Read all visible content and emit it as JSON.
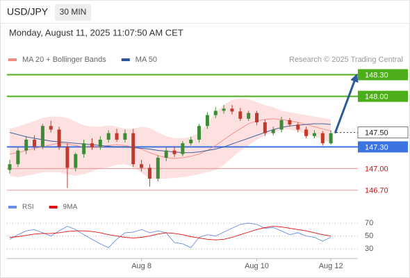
{
  "header": {
    "symbol": "USD/JPY",
    "interval": "30 MIN",
    "timestamp": "Monday, August 11, 2025 11:07:50 AM CET"
  },
  "chart_data": [
    {
      "type": "candlestick",
      "credit": "Research © 2025 Trading Central",
      "up_color": "#3d8b37",
      "down_color": "#c0392b",
      "ylim": [
        146.62,
        148.42
      ],
      "categories": [
        null,
        null,
        null,
        null,
        null,
        null,
        null,
        null,
        null,
        null,
        null,
        null,
        null,
        null,
        null,
        null,
        "Aug 8",
        null,
        null,
        null,
        null,
        null,
        null,
        null,
        null,
        null,
        null,
        null,
        null,
        null,
        "Aug 10",
        null,
        null,
        null,
        null,
        null,
        null,
        null,
        null,
        "Aug 12"
      ],
      "open": [
        146.98,
        147.06,
        147.25,
        147.4,
        147.3,
        147.59,
        147.54,
        147.3,
        147.01,
        147.2,
        147.35,
        147.3,
        147.4,
        147.49,
        147.4,
        147.49,
        147.06,
        147.01,
        146.86,
        147.15,
        147.25,
        147.2,
        147.35,
        147.4,
        147.59,
        147.74,
        147.8,
        147.83,
        147.79,
        147.69,
        147.77,
        147.64,
        147.49,
        147.54,
        147.67,
        147.61,
        147.54,
        147.45,
        147.49,
        147.35
      ],
      "high": [
        147.12,
        147.3,
        147.45,
        147.46,
        147.62,
        147.66,
        147.58,
        147.35,
        147.22,
        147.4,
        147.42,
        147.45,
        147.53,
        147.55,
        147.54,
        147.55,
        147.12,
        147.06,
        147.18,
        147.3,
        147.31,
        147.38,
        147.44,
        147.62,
        147.78,
        147.85,
        147.88,
        147.88,
        147.84,
        147.8,
        147.8,
        147.68,
        147.58,
        147.72,
        147.7,
        147.64,
        147.58,
        147.53,
        147.52,
        147.53
      ],
      "low": [
        146.93,
        147.02,
        147.2,
        147.25,
        147.27,
        147.5,
        147.26,
        146.73,
        146.96,
        147.15,
        147.26,
        147.26,
        147.36,
        147.37,
        147.36,
        147.02,
        146.96,
        146.75,
        146.82,
        147.1,
        147.16,
        147.17,
        147.32,
        147.36,
        147.55,
        147.7,
        147.76,
        147.75,
        147.66,
        147.66,
        147.6,
        147.45,
        147.46,
        147.5,
        147.58,
        147.5,
        147.42,
        147.42,
        147.32,
        147.33
      ],
      "close": [
        147.06,
        147.25,
        147.4,
        147.3,
        147.59,
        147.54,
        147.3,
        147.01,
        147.2,
        147.35,
        147.3,
        147.4,
        147.49,
        147.4,
        147.49,
        147.06,
        147.01,
        146.86,
        147.15,
        147.25,
        147.2,
        147.35,
        147.4,
        147.59,
        147.74,
        147.8,
        147.83,
        147.79,
        147.69,
        147.77,
        147.64,
        147.49,
        147.54,
        147.67,
        147.61,
        147.54,
        147.45,
        147.49,
        147.35,
        147.49
      ],
      "series": [
        {
          "name": "MA 20 + Bollinger Bands",
          "color": "#f28b82",
          "band_color": "#fde0e0",
          "values": [
            147.2,
            147.22,
            147.25,
            147.28,
            147.3,
            147.33,
            147.35,
            147.34,
            147.32,
            147.3,
            147.29,
            147.3,
            147.32,
            147.33,
            147.32,
            147.3,
            147.27,
            147.22,
            147.18,
            147.15,
            147.14,
            147.15,
            147.17,
            147.2,
            147.25,
            147.32,
            147.4,
            147.48,
            147.55,
            147.62,
            147.66,
            147.68,
            147.69,
            147.68,
            147.66,
            147.64,
            147.61,
            147.58,
            147.55,
            147.52
          ],
          "upper": [
            147.55,
            147.58,
            147.62,
            147.66,
            147.7,
            147.72,
            147.72,
            147.7,
            147.65,
            147.6,
            147.58,
            147.58,
            147.6,
            147.58,
            147.55,
            147.55,
            147.58,
            147.56,
            147.5,
            147.45,
            147.42,
            147.42,
            147.44,
            147.5,
            147.62,
            147.78,
            147.88,
            147.95,
            147.97,
            147.96,
            147.92,
            147.88,
            147.85,
            147.8,
            147.78,
            147.76,
            147.74,
            147.72,
            147.7,
            147.68
          ],
          "lower": [
            146.9,
            146.88,
            146.9,
            146.92,
            146.95,
            146.95,
            146.95,
            146.92,
            146.9,
            146.92,
            146.96,
            147.0,
            147.02,
            147.05,
            147.06,
            147.02,
            146.94,
            146.86,
            146.86,
            146.86,
            146.87,
            146.88,
            146.9,
            146.92,
            146.95,
            146.98,
            147.05,
            147.15,
            147.25,
            147.32,
            147.4,
            147.46,
            147.5,
            147.54,
            147.54,
            147.52,
            147.48,
            147.44,
            147.4,
            147.36
          ]
        },
        {
          "name": "MA 50",
          "color": "#2f5597",
          "values": [
            147.5,
            147.47,
            147.44,
            147.42,
            147.4,
            147.38,
            147.37,
            147.36,
            147.35,
            147.34,
            147.33,
            147.32,
            147.31,
            147.3,
            147.3,
            147.29,
            147.28,
            147.27,
            147.25,
            147.24,
            147.23,
            147.22,
            147.22,
            147.23,
            147.25,
            147.27,
            147.3,
            147.34,
            147.38,
            147.42,
            147.46,
            147.5,
            147.54,
            147.57,
            147.59,
            147.6,
            147.61,
            147.62,
            147.62,
            147.61
          ]
        }
      ],
      "levels": [
        {
          "value": 148.3,
          "label": "148.30",
          "color": "#4caf1a",
          "box": "filled",
          "line": "solid"
        },
        {
          "value": 148.0,
          "label": "148.00",
          "color": "#4caf1a",
          "box": "filled",
          "line": "solid"
        },
        {
          "value": 147.5,
          "label": "147.50",
          "color": "#222222",
          "box": "outline",
          "line": "dotted"
        },
        {
          "value": 147.3,
          "label": "147.30",
          "color": "#3b73e0",
          "box": "filled",
          "line": "solid"
        },
        {
          "value": 147.0,
          "label": "147.00",
          "color": "#f0a0a0",
          "text_color": "#cc1111",
          "box": "none",
          "line": "solid"
        },
        {
          "value": 146.7,
          "label": "146.70",
          "color": "#f0a0a0",
          "text_color": "#cc1111",
          "box": "none",
          "line": "solid"
        }
      ]
    },
    {
      "type": "line",
      "ylim": [
        20,
        80
      ],
      "yticks": [
        70,
        50,
        30
      ],
      "grid": true,
      "series": [
        {
          "name": "RSI",
          "color": "#6a8ee6",
          "values": [
            45,
            52,
            58,
            60,
            55,
            50,
            58,
            65,
            60,
            52,
            45,
            38,
            32,
            45,
            55,
            56,
            60,
            55,
            58,
            55,
            40,
            38,
            32,
            48,
            52,
            50,
            56,
            62,
            68,
            70,
            68,
            62,
            63,
            58,
            52,
            55,
            50,
            48,
            42,
            48
          ]
        },
        {
          "name": "9MA",
          "color": "#e01010",
          "values": [
            48,
            49,
            51,
            53,
            54,
            54,
            55,
            57,
            58,
            58,
            57,
            55,
            52,
            50,
            48,
            47,
            48,
            50,
            53,
            55,
            54,
            52,
            49,
            47,
            45,
            44,
            45,
            48,
            52,
            56,
            60,
            63,
            65,
            64,
            62,
            60,
            58,
            55,
            52,
            50
          ]
        }
      ]
    }
  ]
}
